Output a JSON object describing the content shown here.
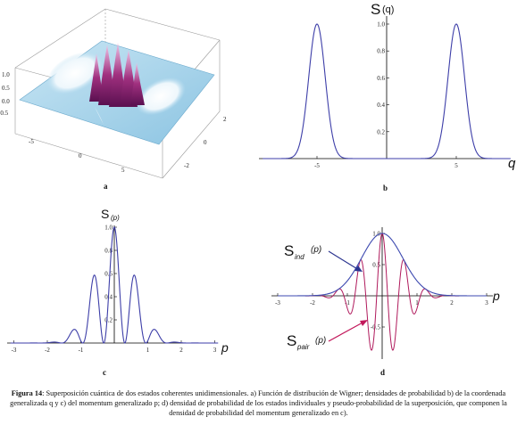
{
  "figure": {
    "panels": [
      {
        "id": "a",
        "letter": "a",
        "type": "surface-3d",
        "z_ticks": [
          "1.0",
          "0.5",
          "0.0",
          "-0.5"
        ],
        "x_ticks": [
          "-5",
          "0",
          "5"
        ],
        "y_ticks": [
          "-2",
          "0",
          "2"
        ],
        "colors": {
          "surface": "#9fd0ea",
          "peak": "#8a1e6e",
          "trough": "#ffffff"
        }
      },
      {
        "id": "b",
        "letter": "b",
        "ylabel": "S",
        "ylabel_arg": "(q)",
        "xlabel": "q",
        "x_ticks": [
          "-5",
          "5"
        ],
        "y_ticks": [
          "1.0",
          "0.8",
          "0.6",
          "0.4",
          "0.2"
        ],
        "color": "#3d3ea8"
      },
      {
        "id": "c",
        "letter": "c",
        "ylabel": "S",
        "ylabel_sub": "(p)",
        "xlabel": "p",
        "x_ticks": [
          "-3",
          "-2",
          "-1",
          "1",
          "2",
          "3"
        ],
        "y_ticks": [
          "1.0",
          "0.8",
          "0.6",
          "0.4",
          "0.2"
        ],
        "color": "#3d3ea8"
      },
      {
        "id": "d",
        "letter": "d",
        "xlabel": "p",
        "label_ind": "S",
        "label_ind_sub": "ind",
        "label_ind_arg": "(p)",
        "label_pair": "S",
        "label_pair_sub": "pair",
        "label_pair_arg": "(p)",
        "x_ticks": [
          "-3",
          "-2",
          "-1",
          "1",
          "2",
          "3"
        ],
        "y_ticks": [
          "1.0",
          "0.5",
          "-0.5"
        ],
        "colors": {
          "ind": "#3d4ab0",
          "pair": "#b01a5c",
          "arrow_ind": "#2c3590",
          "arrow_pair": "#c2185b"
        }
      }
    ],
    "caption": {
      "label": "Figura 14",
      "text": ": Superposición cuántica de dos estados coherentes unidimensionales. a) Función de distribución de Wigner; densidades de probabilidad b) de la coordenada generalizada q y c) del momentum generalizado p; d) densidad de probabilidad de los estados individuales y pseudo-probabilidad de la superposición, que componen la densidad de probabilidad del momentum generalizado en c)."
    }
  }
}
